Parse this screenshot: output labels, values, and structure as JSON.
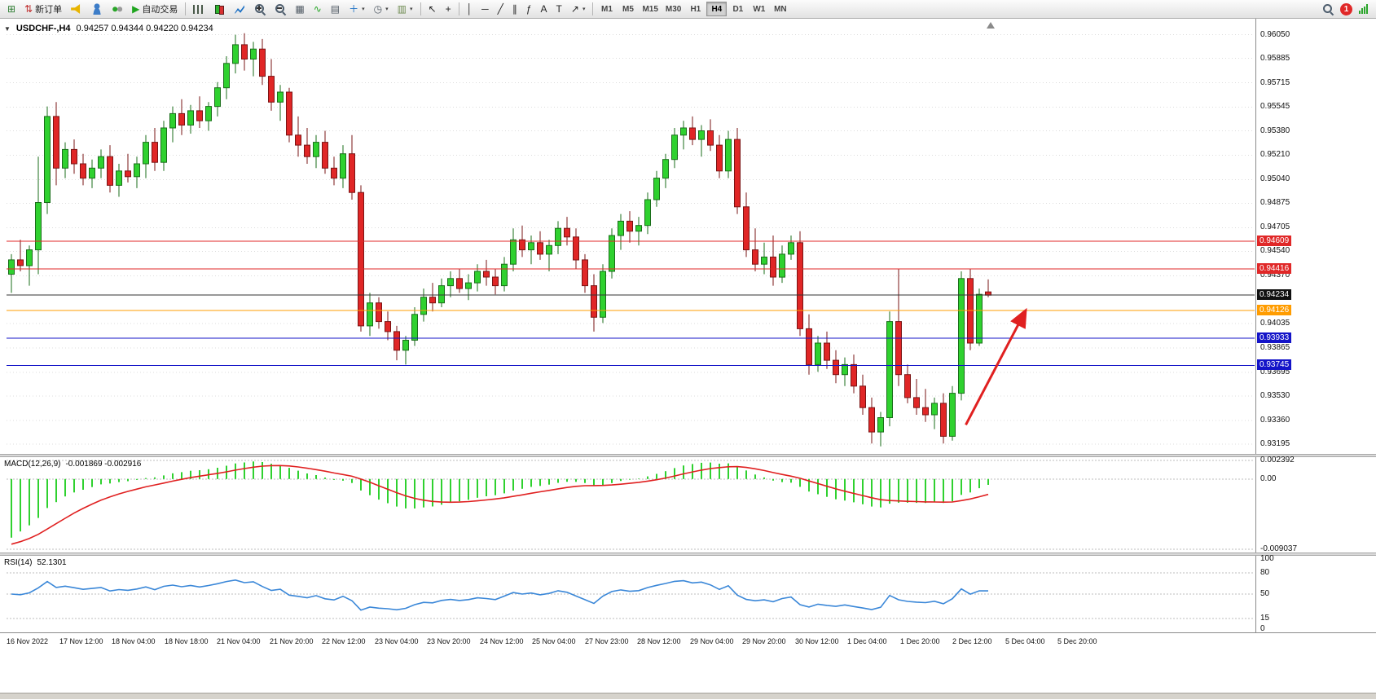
{
  "toolbar": {
    "notification_count": "1",
    "timeframes": [
      "M1",
      "M5",
      "M15",
      "M30",
      "H1",
      "H4",
      "D1",
      "W1",
      "MN"
    ],
    "active_timeframe": "H4",
    "buttons": [
      {
        "name": "new-chart",
        "glyph": "⊞",
        "color": "#2e7d32"
      },
      {
        "name": "new-order",
        "glyph": "⇅",
        "color": "#c03030",
        "label": "新订单"
      },
      {
        "name": "alerts-horn",
        "icon": "horn"
      },
      {
        "name": "mql-community",
        "icon": "person"
      },
      {
        "name": "vps-status",
        "icon": "dots"
      },
      {
        "name": "auto-trading",
        "glyph": "▶",
        "color": "#1fa51f",
        "label": "自动交易"
      },
      {
        "sep": true
      },
      {
        "name": "bar-chart-mode",
        "icon": "bars"
      },
      {
        "name": "candlestick-mode",
        "icon": "candles"
      },
      {
        "name": "line-chart-mode",
        "icon": "linechart"
      },
      {
        "name": "zoom-in",
        "icon": "magplus"
      },
      {
        "name": "zoom-out",
        "icon": "magminus"
      },
      {
        "name": "tile-windows",
        "glyph": "▦",
        "color": "#505a64"
      },
      {
        "name": "indicator-list",
        "glyph": "∿",
        "color": "#1fa51f"
      },
      {
        "name": "data-window",
        "glyph": "▤",
        "color": "#505a64"
      },
      {
        "name": "add-indicator",
        "glyph": "＋",
        "color": "#1a6fc4",
        "dropdown": true
      },
      {
        "name": "periods",
        "glyph": "◷",
        "color": "#505a64",
        "dropdown": true
      },
      {
        "name": "templates",
        "glyph": "▥",
        "color": "#6d8a4f",
        "dropdown": true
      },
      {
        "sep": true
      },
      {
        "name": "cursor-tool",
        "glyph": "↖",
        "color": "#222"
      },
      {
        "name": "crosshair-tool",
        "glyph": "+",
        "color": "#222"
      },
      {
        "sep": true
      },
      {
        "name": "vertical-line-tool",
        "glyph": "│",
        "color": "#222"
      },
      {
        "name": "horizontal-line-tool",
        "glyph": "─",
        "color": "#222"
      },
      {
        "name": "trendline-tool",
        "glyph": "╱",
        "color": "#222"
      },
      {
        "name": "channel-tool",
        "glyph": "∥",
        "color": "#222"
      },
      {
        "name": "fibonacci-tool",
        "glyph": "ƒ",
        "color": "#222"
      },
      {
        "name": "text-tool",
        "glyph": "A",
        "color": "#222"
      },
      {
        "name": "label-tool",
        "glyph": "T",
        "color": "#222"
      },
      {
        "name": "shapes-tool",
        "glyph": "↗",
        "color": "#222",
        "dropdown": true
      },
      {
        "sep": true
      }
    ]
  },
  "chart_header": {
    "symbol_period": "USDCHF-,H4",
    "ohlc": "0.94257 0.94344 0.94220 0.94234"
  },
  "indicators": {
    "macd": {
      "label": "MACD(12,26,9)",
      "values": "-0.001869 -0.002916",
      "axis_labels": [
        "0.002392",
        "0.00",
        "-0.009037"
      ]
    },
    "rsi": {
      "label": "RSI(14)",
      "value": "52.1301",
      "axis_labels": [
        "100",
        "80",
        "50",
        "15",
        "0"
      ]
    }
  },
  "chart_data": {
    "type": "candlestick",
    "symbol": "USDCHF-",
    "period": "H4",
    "colors": {
      "bull": "#2fd12f",
      "bull_border": "#1a6e1a",
      "bear": "#e02626",
      "bear_border": "#7a1414",
      "macd_hist": "#2fd12f",
      "macd_signal": "#e02020",
      "rsi_line": "#3a87d8",
      "grid": "#dcdcdc"
    },
    "price_axis": {
      "max": 0.9615,
      "min": 0.9315,
      "ticks": [
        "0.96050",
        "0.95885",
        "0.95715",
        "0.95545",
        "0.95380",
        "0.95210",
        "0.95040",
        "0.94875",
        "0.94705",
        "0.94540",
        "0.94370",
        "0.94035",
        "0.93865",
        "0.93695",
        "0.93530",
        "0.93360",
        "0.93195"
      ]
    },
    "levels": [
      {
        "name": "resistance-line-1",
        "price": 0.94609,
        "color": "#e02828",
        "tag_bg": "#e02828",
        "label": "0.94609"
      },
      {
        "name": "resistance-line-2",
        "price": 0.94416,
        "color": "#e02828",
        "tag_bg": "#e02828",
        "label": "0.94416"
      },
      {
        "name": "bid-price-line",
        "price": 0.94234,
        "color": "#333333",
        "tag_bg": "#111111",
        "label": "0.94234"
      },
      {
        "name": "pivot-line-orange",
        "price": 0.94126,
        "color": "#ff9c00",
        "tag_bg": "#ff9c00",
        "label": "0.94126"
      },
      {
        "name": "support-line-1",
        "price": 0.93933,
        "color": "#1414c8",
        "tag_bg": "#1414c8",
        "label": "0.93933"
      },
      {
        "name": "support-line-2",
        "price": 0.93745,
        "color": "#1414c8",
        "tag_bg": "#1414c8",
        "label": "0.93745"
      }
    ],
    "arrow": {
      "from_index": 106.5,
      "from_price": 0.9333,
      "to_index": 113.2,
      "to_price": 0.9413,
      "color": "#e02020",
      "width": 3
    },
    "macd": {
      "fast": 12,
      "slow": 26,
      "signal": 9,
      "max": 0.002392,
      "min": -0.009037,
      "axis_values": [
        0.002392,
        0,
        -0.009037
      ]
    },
    "rsi": {
      "period": 14,
      "levels": [
        80,
        50,
        15
      ],
      "axis_values": [
        100,
        80,
        50,
        15,
        0
      ]
    },
    "time_axis": [
      "16 Nov 2022",
      "17 Nov 12:00",
      "18 Nov 04:00",
      "18 Nov 18:00",
      "21 Nov 04:00",
      "21 Nov 20:00",
      "22 Nov 12:00",
      "23 Nov 04:00",
      "23 Nov 20:00",
      "24 Nov 12:00",
      "25 Nov 04:00",
      "27 Nov 23:00",
      "28 Nov 12:00",
      "29 Nov 04:00",
      "29 Nov 20:00",
      "30 Nov 12:00",
      "1 Dec 04:00",
      "1 Dec 20:00",
      "2 Dec 12:00",
      "5 Dec 04:00",
      "5 Dec 20:00"
    ],
    "candles": [
      [
        0.9438,
        0.9452,
        0.9425,
        0.9448
      ],
      [
        0.9448,
        0.9462,
        0.944,
        0.9444
      ],
      [
        0.9444,
        0.9458,
        0.943,
        0.9455
      ],
      [
        0.9455,
        0.952,
        0.9438,
        0.9488
      ],
      [
        0.9488,
        0.9555,
        0.948,
        0.9548
      ],
      [
        0.9548,
        0.9558,
        0.95,
        0.9512
      ],
      [
        0.9512,
        0.953,
        0.9505,
        0.9525
      ],
      [
        0.9525,
        0.9532,
        0.9508,
        0.9515
      ],
      [
        0.9515,
        0.9522,
        0.95,
        0.9505
      ],
      [
        0.9505,
        0.9518,
        0.9498,
        0.9512
      ],
      [
        0.9512,
        0.9525,
        0.9505,
        0.952
      ],
      [
        0.952,
        0.9528,
        0.9495,
        0.95
      ],
      [
        0.95,
        0.9515,
        0.9492,
        0.951
      ],
      [
        0.951,
        0.9522,
        0.9502,
        0.9506
      ],
      [
        0.9506,
        0.952,
        0.9498,
        0.9515
      ],
      [
        0.9515,
        0.9535,
        0.9505,
        0.953
      ],
      [
        0.953,
        0.954,
        0.951,
        0.9516
      ],
      [
        0.9516,
        0.9545,
        0.951,
        0.954
      ],
      [
        0.954,
        0.9555,
        0.953,
        0.955
      ],
      [
        0.955,
        0.956,
        0.9535,
        0.9542
      ],
      [
        0.9542,
        0.9556,
        0.9536,
        0.9552
      ],
      [
        0.9552,
        0.9562,
        0.954,
        0.9545
      ],
      [
        0.9545,
        0.9558,
        0.9538,
        0.9555
      ],
      [
        0.9555,
        0.9572,
        0.9548,
        0.9568
      ],
      [
        0.9568,
        0.959,
        0.956,
        0.9585
      ],
      [
        0.9585,
        0.9605,
        0.9578,
        0.9598
      ],
      [
        0.9598,
        0.9606,
        0.958,
        0.9588
      ],
      [
        0.9588,
        0.96,
        0.9576,
        0.9595
      ],
      [
        0.9595,
        0.9602,
        0.957,
        0.9576
      ],
      [
        0.9576,
        0.9588,
        0.9552,
        0.9558
      ],
      [
        0.9558,
        0.957,
        0.9545,
        0.9565
      ],
      [
        0.9565,
        0.9568,
        0.953,
        0.9535
      ],
      [
        0.9535,
        0.9548,
        0.952,
        0.9528
      ],
      [
        0.9528,
        0.954,
        0.9515,
        0.952
      ],
      [
        0.952,
        0.9535,
        0.9512,
        0.953
      ],
      [
        0.953,
        0.9538,
        0.9508,
        0.9512
      ],
      [
        0.9512,
        0.952,
        0.95,
        0.9505
      ],
      [
        0.9505,
        0.9528,
        0.9498,
        0.9522
      ],
      [
        0.9522,
        0.9535,
        0.949,
        0.9495
      ],
      [
        0.9495,
        0.95,
        0.9398,
        0.9402
      ],
      [
        0.9402,
        0.9425,
        0.9395,
        0.9418
      ],
      [
        0.9418,
        0.9422,
        0.94,
        0.9405
      ],
      [
        0.9405,
        0.9412,
        0.9392,
        0.9398
      ],
      [
        0.9398,
        0.9402,
        0.9378,
        0.9385
      ],
      [
        0.9385,
        0.9395,
        0.9375,
        0.9392
      ],
      [
        0.9392,
        0.9415,
        0.9388,
        0.941
      ],
      [
        0.941,
        0.9428,
        0.9405,
        0.9422
      ],
      [
        0.9422,
        0.9432,
        0.9412,
        0.9418
      ],
      [
        0.9418,
        0.9435,
        0.9415,
        0.943
      ],
      [
        0.943,
        0.944,
        0.9422,
        0.9435
      ],
      [
        0.9435,
        0.9442,
        0.9425,
        0.9428
      ],
      [
        0.9428,
        0.9438,
        0.942,
        0.9432
      ],
      [
        0.9432,
        0.9445,
        0.9426,
        0.944
      ],
      [
        0.944,
        0.9448,
        0.943,
        0.9436
      ],
      [
        0.9436,
        0.9442,
        0.9424,
        0.943
      ],
      [
        0.943,
        0.945,
        0.9426,
        0.9445
      ],
      [
        0.9445,
        0.947,
        0.944,
        0.9462
      ],
      [
        0.9462,
        0.9472,
        0.945,
        0.9455
      ],
      [
        0.9455,
        0.9465,
        0.9445,
        0.946
      ],
      [
        0.946,
        0.9468,
        0.9448,
        0.9452
      ],
      [
        0.9452,
        0.9462,
        0.944,
        0.9458
      ],
      [
        0.9458,
        0.9475,
        0.9452,
        0.947
      ],
      [
        0.947,
        0.9478,
        0.9458,
        0.9464
      ],
      [
        0.9464,
        0.947,
        0.9442,
        0.9448
      ],
      [
        0.9448,
        0.9452,
        0.9425,
        0.943
      ],
      [
        0.943,
        0.9438,
        0.9398,
        0.9408
      ],
      [
        0.9408,
        0.9445,
        0.9404,
        0.944
      ],
      [
        0.944,
        0.947,
        0.9435,
        0.9465
      ],
      [
        0.9465,
        0.948,
        0.9455,
        0.9475
      ],
      [
        0.9475,
        0.9482,
        0.946,
        0.9468
      ],
      [
        0.9468,
        0.9478,
        0.9458,
        0.9472
      ],
      [
        0.9472,
        0.9495,
        0.9466,
        0.949
      ],
      [
        0.949,
        0.951,
        0.9485,
        0.9505
      ],
      [
        0.9505,
        0.9522,
        0.9498,
        0.9518
      ],
      [
        0.9518,
        0.954,
        0.9512,
        0.9535
      ],
      [
        0.9535,
        0.9545,
        0.9525,
        0.954
      ],
      [
        0.954,
        0.9548,
        0.9528,
        0.9532
      ],
      [
        0.9532,
        0.9542,
        0.952,
        0.9538
      ],
      [
        0.9538,
        0.9546,
        0.9524,
        0.9528
      ],
      [
        0.9528,
        0.9535,
        0.9505,
        0.951
      ],
      [
        0.951,
        0.9538,
        0.9505,
        0.9532
      ],
      [
        0.9532,
        0.954,
        0.948,
        0.9485
      ],
      [
        0.9485,
        0.9495,
        0.945,
        0.9455
      ],
      [
        0.9455,
        0.947,
        0.944,
        0.9445
      ],
      [
        0.9445,
        0.946,
        0.9438,
        0.945
      ],
      [
        0.945,
        0.9465,
        0.943,
        0.9436
      ],
      [
        0.9436,
        0.9458,
        0.9432,
        0.9452
      ],
      [
        0.9452,
        0.9465,
        0.9448,
        0.946
      ],
      [
        0.946,
        0.9468,
        0.9395,
        0.94
      ],
      [
        0.94,
        0.941,
        0.9368,
        0.9375
      ],
      [
        0.9375,
        0.9395,
        0.937,
        0.939
      ],
      [
        0.939,
        0.9398,
        0.9372,
        0.9378
      ],
      [
        0.9378,
        0.9385,
        0.9362,
        0.9368
      ],
      [
        0.9368,
        0.938,
        0.936,
        0.9375
      ],
      [
        0.9375,
        0.9382,
        0.9355,
        0.936
      ],
      [
        0.936,
        0.9368,
        0.934,
        0.9345
      ],
      [
        0.9345,
        0.9352,
        0.932,
        0.9328
      ],
      [
        0.9328,
        0.9342,
        0.9318,
        0.9338
      ],
      [
        0.9338,
        0.9412,
        0.9332,
        0.9405
      ],
      [
        0.9405,
        0.9442,
        0.936,
        0.9368
      ],
      [
        0.9368,
        0.9375,
        0.9348,
        0.9352
      ],
      [
        0.9352,
        0.9365,
        0.934,
        0.9345
      ],
      [
        0.9345,
        0.9358,
        0.9335,
        0.934
      ],
      [
        0.934,
        0.9352,
        0.933,
        0.9348
      ],
      [
        0.9348,
        0.9355,
        0.932,
        0.9325
      ],
      [
        0.9325,
        0.936,
        0.9322,
        0.9355
      ],
      [
        0.9355,
        0.944,
        0.935,
        0.9435
      ],
      [
        0.9435,
        0.9442,
        0.9385,
        0.939
      ],
      [
        0.939,
        0.9428,
        0.9388,
        0.9424
      ],
      [
        0.94257,
        0.94344,
        0.9422,
        0.94234
      ]
    ]
  }
}
